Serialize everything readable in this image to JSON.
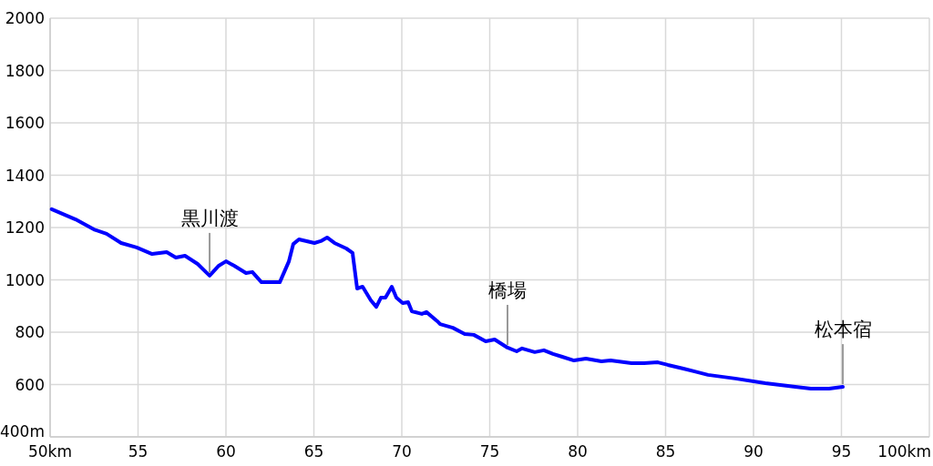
{
  "chart_data": {
    "type": "line",
    "x": [
      50.09,
      51.45,
      52.49,
      53.21,
      54.04,
      54.92,
      55.8,
      56.63,
      57.15,
      57.67,
      58.39,
      59.07,
      59.59,
      60.0,
      60.47,
      61.14,
      61.5,
      62.02,
      63.06,
      63.58,
      63.83,
      64.15,
      65.03,
      65.39,
      65.75,
      66.17,
      66.84,
      67.2,
      67.46,
      67.77,
      68.24,
      68.55,
      68.81,
      69.07,
      69.43,
      69.69,
      70.05,
      70.36,
      70.57,
      71.14,
      71.4,
      72.02,
      72.18,
      72.9,
      73.58,
      74.09,
      74.77,
      75.28,
      76.01,
      76.53,
      76.84,
      77.56,
      78.08,
      78.6,
      79.12,
      79.79,
      80.47,
      81.35,
      81.87,
      83.06,
      83.78,
      84.56,
      85.13,
      86.01,
      87.41,
      88.96,
      90.67,
      92.38,
      93.26,
      94.3,
      95.08
    ],
    "series": [
      {
        "color": "#0000ff",
        "values": [
          1270,
          1231,
          1193,
          1176,
          1141,
          1124,
          1099,
          1106,
          1085,
          1092,
          1061,
          1016,
          1054,
          1071,
          1054,
          1026,
          1030,
          991,
          991,
          1071,
          1137,
          1155,
          1141,
          1148,
          1162,
          1141,
          1120,
          1103,
          967,
          974,
          922,
          897,
          932,
          932,
          974,
          932,
          911,
          915,
          880,
          870,
          877,
          842,
          831,
          817,
          793,
          790,
          765,
          772,
          741,
          727,
          738,
          724,
          731,
          717,
          706,
          692,
          699,
          689,
          692,
          682,
          682,
          685,
          675,
          661,
          637,
          623,
          605,
          591,
          584,
          584,
          591
        ]
      }
    ],
    "xlim": [
      50,
      100
    ],
    "ylim": [
      400,
      2000
    ],
    "xticks": [
      {
        "value": 50,
        "label": "50km"
      },
      55,
      60,
      65,
      70,
      75,
      80,
      85,
      90,
      95,
      {
        "value": 100,
        "label": "100km"
      }
    ],
    "yticks": [
      {
        "value": 400,
        "label": "400m"
      },
      600,
      800,
      1000,
      1200,
      1400,
      1600,
      1800,
      2000
    ],
    "grid": true,
    "marker": "none",
    "line_style": "solid",
    "annotations": [
      {
        "text": "黒川渡",
        "x": 59.07,
        "y": 1016
      },
      {
        "text": "橋場",
        "x": 76.01,
        "y": 741
      },
      {
        "text": "松本宿",
        "x": 95.08,
        "y": 591
      }
    ]
  }
}
